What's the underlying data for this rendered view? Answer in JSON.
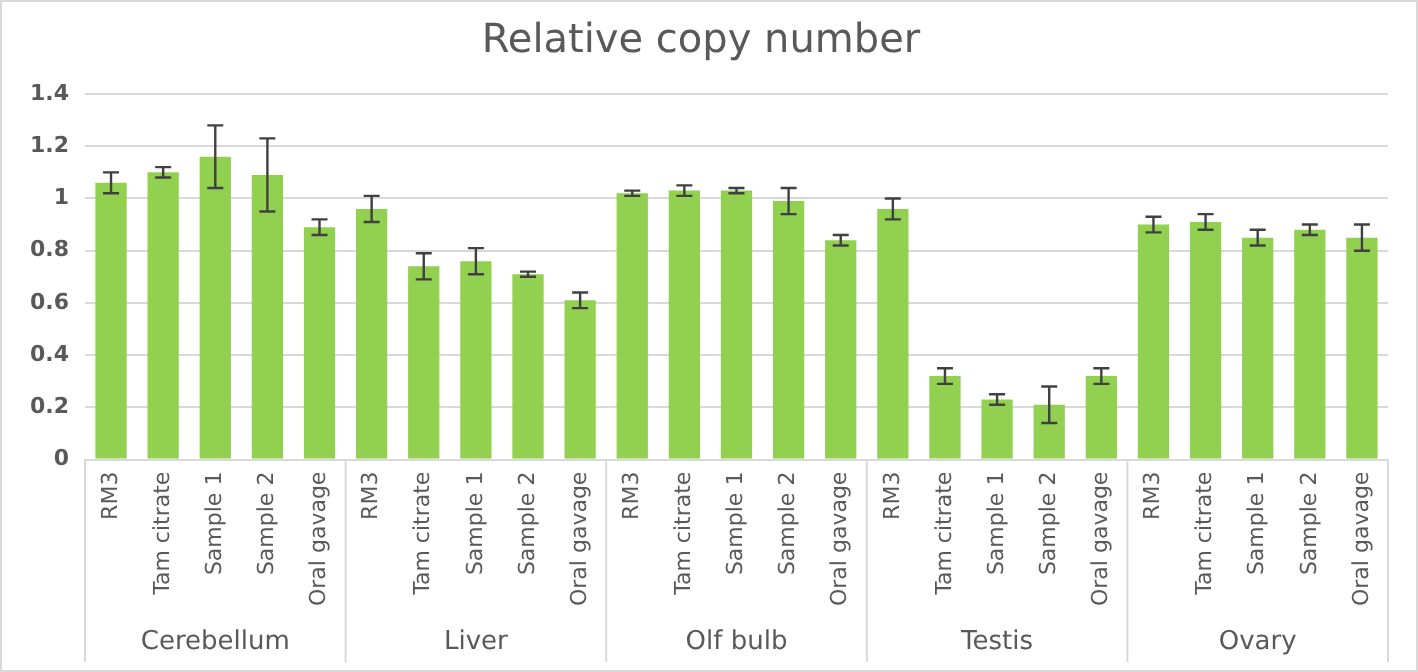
{
  "chart_data": {
    "type": "bar",
    "title": "Relative copy number",
    "categories": [
      "RM3",
      "Tam citrate",
      "Sample 1",
      "Sample 2",
      "Oral gavage",
      "RM3",
      "Tam citrate",
      "Sample 1",
      "Sample 2",
      "Oral gavage",
      "RM3",
      "Tam citrate",
      "Sample 1",
      "Sample 2",
      "Oral gavage",
      "RM3",
      "Tam citrate",
      "Sample 1",
      "Sample 2",
      "Oral gavage",
      "RM3",
      "Tam citrate",
      "Sample 1",
      "Sample 2",
      "Oral gavage"
    ],
    "values": [
      1.06,
      1.1,
      1.16,
      1.09,
      0.89,
      0.96,
      0.74,
      0.76,
      0.71,
      0.61,
      1.02,
      1.03,
      1.03,
      0.99,
      0.84,
      0.96,
      0.32,
      0.23,
      0.21,
      0.32,
      0.9,
      0.91,
      0.85,
      0.88,
      0.85
    ],
    "errors": [
      0.04,
      0.02,
      0.12,
      0.14,
      0.03,
      0.05,
      0.05,
      0.05,
      0.01,
      0.03,
      0.01,
      0.02,
      0.01,
      0.05,
      0.02,
      0.04,
      0.03,
      0.02,
      0.07,
      0.03,
      0.03,
      0.03,
      0.03,
      0.02,
      0.05
    ],
    "color": "#92d050",
    "annotations": [
      "Cerebellum",
      "Liver",
      "Olf bulb",
      "Testis",
      "Ovary"
    ],
    "ylim": [
      0,
      1.4
    ],
    "yticks": [
      0,
      0.2,
      0.4,
      0.6,
      0.8,
      1,
      1.2,
      1.4
    ],
    "grid": "y",
    "legend": false
  }
}
